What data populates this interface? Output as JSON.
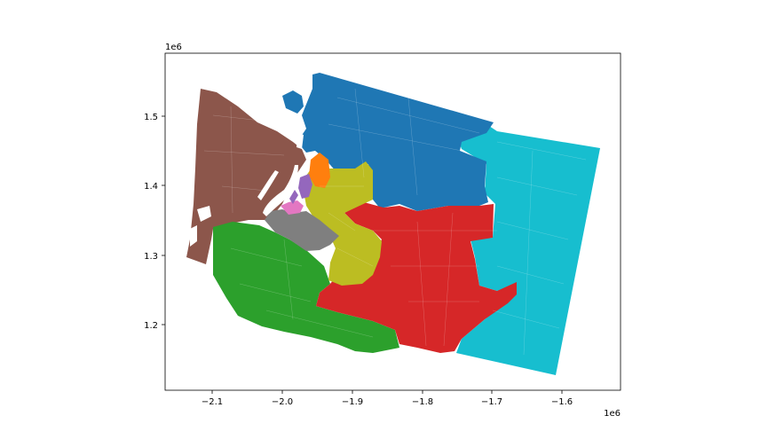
{
  "map": {
    "x_ticks": [
      "−2.1",
      "−2.0",
      "−1.9",
      "−1.8",
      "−1.7",
      "−1.6"
    ],
    "y_ticks": [
      "1.5",
      "1.4",
      "1.3",
      "1.2"
    ],
    "x_offset": "1e6",
    "y_offset": "1e6",
    "districts": [
      {
        "id": "northwest",
        "color": "#1f77b4"
      },
      {
        "id": "snohomish-small",
        "color": "#ff7f0e"
      },
      {
        "id": "southwest",
        "color": "#2ca02c"
      },
      {
        "id": "central",
        "color": "#d62728"
      },
      {
        "id": "seattle",
        "color": "#9467bd"
      },
      {
        "id": "olympic",
        "color": "#8c564b"
      },
      {
        "id": "tacoma",
        "color": "#e377c2"
      },
      {
        "id": "pierce",
        "color": "#7f7f7f"
      },
      {
        "id": "king-east",
        "color": "#bcbd22"
      },
      {
        "id": "eastern",
        "color": "#17becf"
      }
    ]
  }
}
